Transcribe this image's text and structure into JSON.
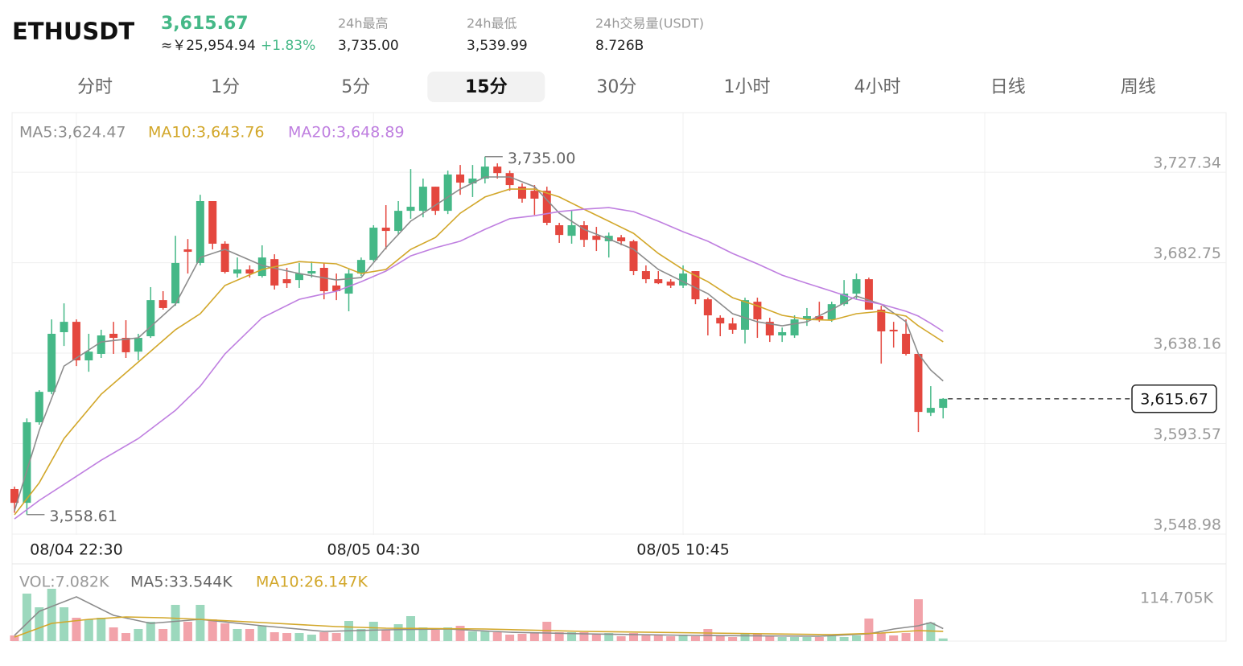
{
  "header": {
    "symbol": "ETHUSDT",
    "price": "3,615.67",
    "cny": "≈￥25,954.94",
    "change": "+1.83%",
    "stats": [
      {
        "label": "24h最高",
        "value": "3,735.00"
      },
      {
        "label": "24h最低",
        "value": "3,539.99"
      },
      {
        "label": "24h交易量(USDT)",
        "value": "8.726B"
      }
    ]
  },
  "tabs": {
    "items": [
      "分时",
      "1分",
      "5分",
      "15分",
      "30分",
      "1小时",
      "4小时",
      "日线",
      "周线"
    ],
    "active": 3
  },
  "chart_data": [
    {
      "type": "candlestick",
      "categories": [
        null,
        null,
        null,
        null,
        null,
        "08/04 22:30",
        null,
        null,
        null,
        null,
        null,
        null,
        null,
        null,
        null,
        null,
        null,
        null,
        null,
        null,
        null,
        null,
        null,
        null,
        null,
        null,
        null,
        null,
        null,
        "08/05 04:30",
        null,
        null,
        null,
        null,
        null,
        null,
        null,
        null,
        null,
        null,
        null,
        null,
        null,
        null,
        null,
        null,
        null,
        null,
        null,
        null,
        null,
        null,
        null,
        null,
        "08/05 10:45",
        null,
        null,
        null,
        null,
        null,
        null,
        null,
        null,
        null,
        null,
        null,
        null,
        null,
        null,
        null,
        null,
        null,
        null,
        null,
        null,
        null
      ],
      "open": [
        3571.2,
        3564.4,
        3604.1,
        3619.1,
        3648.5,
        3653.6,
        3634.6,
        3637.8,
        3647.7,
        3645.7,
        3638.9,
        3646.5,
        3664.3,
        3662.7,
        3689.3,
        3682.6,
        3713.1,
        3692.1,
        3677.4,
        3679.4,
        3676.2,
        3684.5,
        3674.6,
        3674.2,
        3677.4,
        3680.2,
        3671.5,
        3667.5,
        3677.4,
        3684.1,
        3700.0,
        3698.4,
        3708.3,
        3708.3,
        3720.2,
        3708.3,
        3726.2,
        3721.8,
        3724.2,
        3730.1,
        3726.9,
        3720.2,
        3718.2,
        3718.2,
        3701.2,
        3696.0,
        3701.2,
        3696.0,
        3693.3,
        3695.2,
        3693.3,
        3678.6,
        3674.6,
        3673.4,
        3671.5,
        3678.6,
        3664.7,
        3655.6,
        3652.8,
        3649.7,
        3663.5,
        3653.6,
        3646.9,
        3646.9,
        3654.8,
        3656.4,
        3654.8,
        3662.3,
        3667.5,
        3674.6,
        3659.6,
        3649.7,
        3647.7,
        3637.8,
        3608.8,
        3611.2
      ],
      "high": [
        3572.4,
        3606.0,
        3619.9,
        3654.8,
        3662.7,
        3654.8,
        3647.7,
        3649.7,
        3653.6,
        3654.4,
        3647.7,
        3670.7,
        3668.7,
        3696.0,
        3694.4,
        3716.2,
        3713.1,
        3693.3,
        3685.3,
        3681.4,
        3691.3,
        3686.9,
        3680.2,
        3682.6,
        3683.3,
        3682.6,
        3677.4,
        3679.4,
        3685.3,
        3701.2,
        3711.1,
        3713.1,
        3728.9,
        3724.2,
        3720.2,
        3728.1,
        3730.9,
        3730.9,
        3735.0,
        3731.7,
        3728.1,
        3721.8,
        3721.0,
        3720.2,
        3702.4,
        3708.3,
        3703.2,
        3700.4,
        3697.6,
        3696.4,
        3694.0,
        3681.4,
        3678.6,
        3674.6,
        3681.4,
        3678.6,
        3665.5,
        3656.8,
        3655.6,
        3665.5,
        3665.5,
        3655.6,
        3650.8,
        3656.8,
        3660.4,
        3663.5,
        3663.5,
        3674.2,
        3677.4,
        3675.4,
        3661.5,
        3653.6,
        3654.8,
        3637.8,
        3621.9,
        3616.0
      ],
      "low": [
        3559.5,
        3558.61,
        3602.9,
        3617.9,
        3641.7,
        3631.8,
        3629.0,
        3635.8,
        3637.8,
        3635.8,
        3634.6,
        3645.7,
        3659.6,
        3661.5,
        3677.4,
        3681.4,
        3689.3,
        3677.4,
        3675.4,
        3675.4,
        3675.4,
        3669.5,
        3670.3,
        3670.3,
        3675.4,
        3664.7,
        3664.3,
        3658.8,
        3676.2,
        3683.3,
        3689.3,
        3696.4,
        3704.4,
        3705.1,
        3706.3,
        3706.7,
        3716.2,
        3715.1,
        3721.8,
        3724.2,
        3718.2,
        3712.3,
        3706.3,
        3701.2,
        3692.5,
        3692.1,
        3690.5,
        3688.5,
        3685.3,
        3691.3,
        3676.6,
        3672.6,
        3672.2,
        3670.3,
        3670.3,
        3662.3,
        3646.9,
        3646.5,
        3647.7,
        3642.9,
        3645.7,
        3643.7,
        3643.7,
        3645.7,
        3651.6,
        3653.6,
        3653.6,
        3661.5,
        3664.7,
        3659.6,
        3633.0,
        3640.9,
        3637.0,
        3599.3,
        3607.2,
        3606.0
      ],
      "close": [
        3564.4,
        3604.1,
        3619.1,
        3647.7,
        3653.6,
        3634.6,
        3638.9,
        3646.9,
        3645.7,
        3638.6,
        3645.7,
        3664.3,
        3660.4,
        3682.6,
        3688.1,
        3713.1,
        3692.1,
        3678.2,
        3679.4,
        3677.4,
        3685.3,
        3671.5,
        3672.6,
        3677.4,
        3678.6,
        3668.7,
        3668.7,
        3677.4,
        3684.1,
        3700.0,
        3698.4,
        3708.3,
        3710.3,
        3720.2,
        3708.3,
        3726.2,
        3722.2,
        3724.2,
        3730.1,
        3726.9,
        3721.0,
        3714.3,
        3714.3,
        3702.4,
        3696.4,
        3701.2,
        3694.0,
        3694.0,
        3696.0,
        3693.3,
        3678.6,
        3674.6,
        3672.6,
        3671.5,
        3677.4,
        3664.7,
        3656.8,
        3652.8,
        3649.7,
        3664.3,
        3654.8,
        3646.9,
        3648.5,
        3654.8,
        3656.4,
        3654.8,
        3662.3,
        3667.5,
        3674.6,
        3659.6,
        3648.9,
        3648.9,
        3637.8,
        3609.2,
        3611.2,
        3615.67
      ],
      "up_color": "#45b887",
      "down_color": "#e4473e",
      "ylim": [
        3548.6,
        3756.7
      ],
      "yticks": [
        {
          "value": 3727.34,
          "label": "3,727.34"
        },
        {
          "value": 3682.75,
          "label": "3,682.75"
        },
        {
          "value": 3638.16,
          "label": "3,638.16"
        },
        {
          "value": 3593.57,
          "label": "3,593.57"
        },
        {
          "value": 3548.98,
          "label": "3,548.98"
        }
      ],
      "grid": true,
      "ma": [
        {
          "name": "MA5:3,624.47",
          "color": "#8c8c8c",
          "x": [
            0,
            2,
            4,
            7,
            10,
            13,
            15,
            17,
            20,
            23,
            26,
            28,
            30,
            32,
            34,
            36,
            38,
            40,
            42,
            44,
            46,
            48,
            50,
            52,
            54,
            56,
            58,
            60,
            62,
            64,
            66,
            68,
            70,
            72,
            73,
            74,
            75
          ],
          "values": [
            3560.5,
            3600.1,
            3631.8,
            3643.7,
            3645.7,
            3662.3,
            3685.3,
            3689.3,
            3681.4,
            3677.4,
            3674.2,
            3675.4,
            3690.1,
            3703.2,
            3711.1,
            3719.0,
            3725.0,
            3725.0,
            3720.2,
            3707.1,
            3699.2,
            3694.4,
            3689.3,
            3679.4,
            3673.4,
            3667.5,
            3657.6,
            3653.6,
            3651.6,
            3653.6,
            3659.6,
            3666.3,
            3662.3,
            3653.6,
            3637.8,
            3629.8,
            3624.47
          ]
        },
        {
          "name": "MA10:3,643.76",
          "color": "#d2a72a",
          "x": [
            0,
            2,
            4,
            7,
            10,
            13,
            15,
            17,
            20,
            23,
            26,
            28,
            30,
            32,
            34,
            36,
            38,
            40,
            42,
            44,
            46,
            48,
            50,
            52,
            54,
            56,
            58,
            60,
            62,
            64,
            66,
            68,
            70,
            72,
            73,
            74,
            75
          ],
          "values": [
            3558.5,
            3574.3,
            3596.1,
            3617.9,
            3633.8,
            3649.7,
            3657.6,
            3671.5,
            3679.4,
            3683.3,
            3682.2,
            3677.4,
            3679.4,
            3689.3,
            3695.2,
            3707.1,
            3715.1,
            3719.0,
            3719.0,
            3715.1,
            3709.1,
            3703.2,
            3697.2,
            3687.3,
            3679.4,
            3673.4,
            3665.5,
            3661.5,
            3656.8,
            3654.8,
            3654.4,
            3657.6,
            3658.8,
            3656.4,
            3651.6,
            3647.7,
            3643.76
          ]
        },
        {
          "name": "MA20:3,648.89",
          "color": "#bf7fe0",
          "x": [
            0,
            2,
            4,
            7,
            10,
            13,
            15,
            17,
            20,
            23,
            26,
            28,
            30,
            32,
            34,
            36,
            38,
            40,
            42,
            44,
            46,
            48,
            50,
            52,
            54,
            56,
            58,
            60,
            62,
            64,
            66,
            68,
            70,
            72,
            73,
            74,
            75
          ],
          "values": [
            3556.5,
            3565.6,
            3573.5,
            3585.4,
            3596.1,
            3610.0,
            3621.9,
            3637.8,
            3655.6,
            3664.7,
            3668.7,
            3673.4,
            3678.6,
            3686.1,
            3690.1,
            3693.3,
            3699.2,
            3704.4,
            3705.9,
            3707.9,
            3709.1,
            3709.9,
            3707.9,
            3703.2,
            3698.0,
            3693.3,
            3687.3,
            3682.2,
            3676.6,
            3672.6,
            3668.7,
            3664.7,
            3662.3,
            3658.8,
            3656.4,
            3652.8,
            3648.89
          ]
        }
      ],
      "high_mark": {
        "value": 3735.0,
        "label": "3,735.00"
      },
      "low_mark": {
        "value": 3558.61,
        "label": "3,558.61"
      },
      "last_price": {
        "value": 3615.67,
        "label": "3,615.67"
      }
    },
    {
      "type": "bar",
      "name": "VOL:7.082K",
      "values": [
        15100,
        127700,
        90900,
        140700,
        90900,
        62800,
        58400,
        62800,
        36800,
        21600,
        32500,
        51900,
        32500,
        97400,
        51900,
        97400,
        58400,
        47600,
        32500,
        32500,
        41100,
        23800,
        21600,
        21600,
        17300,
        23800,
        21600,
        54100,
        32500,
        51900,
        30300,
        45400,
        67100,
        36800,
        30300,
        36800,
        41100,
        26000,
        26000,
        23800,
        17300,
        19500,
        23800,
        51900,
        23800,
        23800,
        23800,
        17300,
        21600,
        13000,
        21600,
        15100,
        15100,
        13000,
        17300,
        13000,
        32500,
        13000,
        10800,
        21600,
        19500,
        13000,
        10800,
        10800,
        10800,
        10800,
        15100,
        10800,
        15100,
        60600,
        21600,
        15100,
        21600,
        112500,
        49800,
        7082
      ],
      "up_color": "#9cd8bd",
      "down_color": "#f2a3aa",
      "ylim": [
        0,
        145000
      ],
      "yticks": [
        {
          "value": 114705,
          "label": "114.705K"
        }
      ],
      "ma": [
        {
          "name": "MA5:33.544K",
          "color": "#8c8c8c",
          "x": [
            0,
            2,
            5,
            8,
            11,
            15,
            20,
            25,
            30,
            35,
            40,
            46,
            55,
            65,
            69,
            71,
            73,
            74,
            75
          ],
          "values": [
            15100,
            80000,
            119000,
            69200,
            47600,
            58400,
            41100,
            26000,
            30300,
            32500,
            23800,
            19500,
            15100,
            13000,
            19500,
            32500,
            41100,
            49800,
            33544
          ]
        },
        {
          "name": "MA10:26.147K",
          "color": "#d2a72a",
          "x": [
            0,
            3,
            6,
            9,
            12,
            15,
            20,
            26,
            30,
            38,
            46,
            56,
            66,
            70,
            73,
            75
          ],
          "values": [
            10800,
            47600,
            58400,
            64900,
            62800,
            58400,
            49800,
            39000,
            34600,
            32500,
            26000,
            21600,
            17300,
            21600,
            28100,
            26147
          ]
        }
      ]
    }
  ]
}
